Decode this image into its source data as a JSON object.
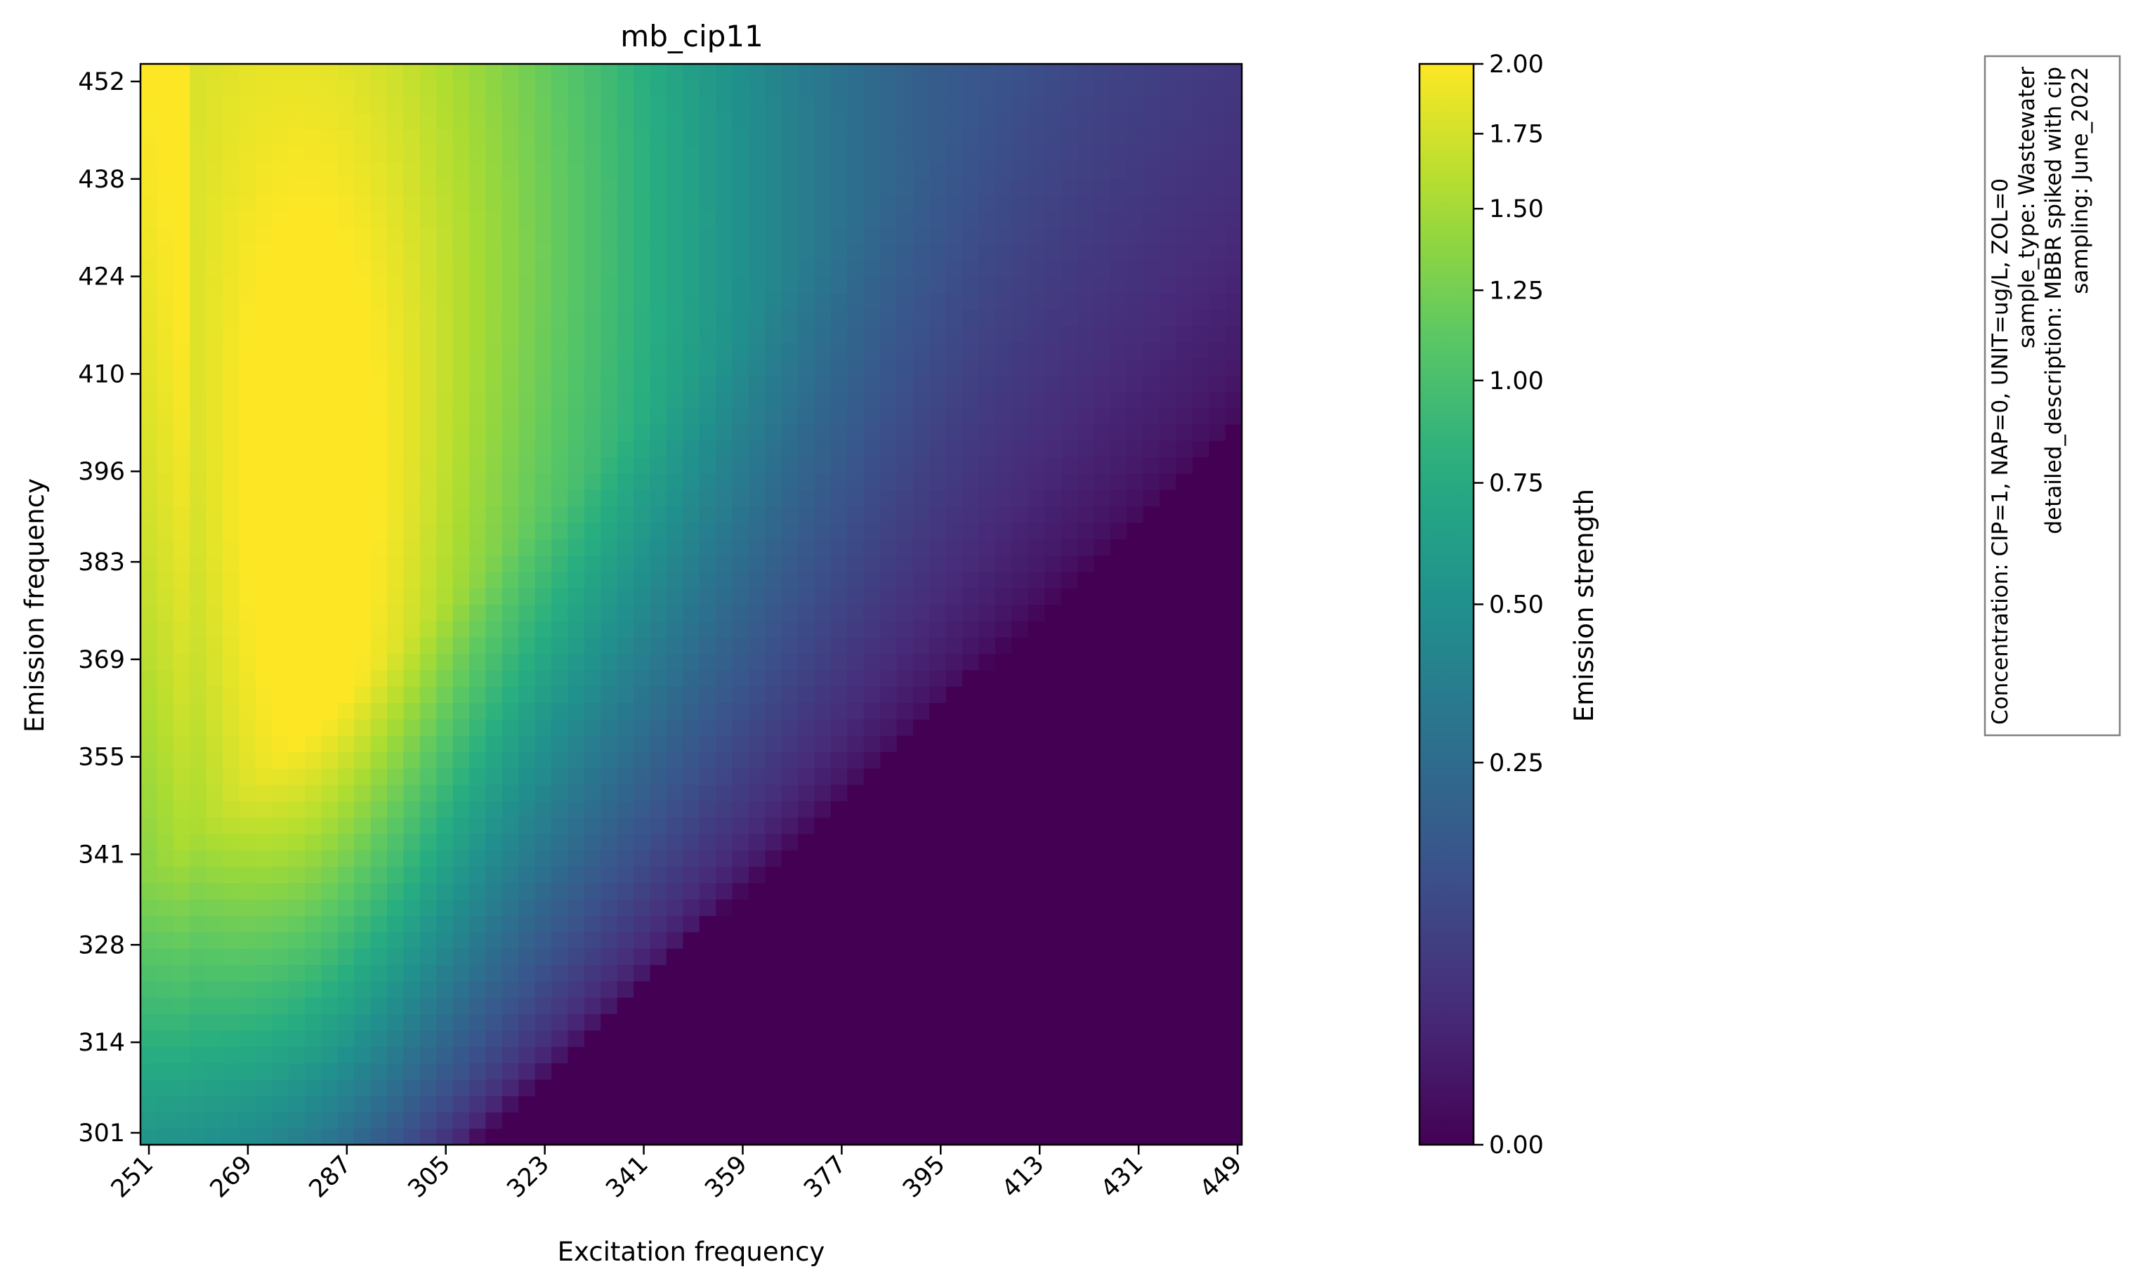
{
  "chart_data": {
    "type": "heatmap",
    "title": "mb_cip11",
    "xlabel": "Excitation frequency",
    "ylabel": "Emission frequency",
    "x_ticks": [
      "251",
      "269",
      "287",
      "305",
      "323",
      "341",
      "359",
      "377",
      "395",
      "413",
      "431",
      "449"
    ],
    "y_ticks": [
      "301",
      "314",
      "328",
      "341",
      "355",
      "369",
      "383",
      "396",
      "410",
      "424",
      "438",
      "452"
    ],
    "xlim": [
      251,
      449
    ],
    "ylim": [
      301,
      452
    ],
    "colorbar": {
      "label": "Emission strength",
      "ticks": [
        "0.00",
        "0.25",
        "0.50",
        "0.75",
        "1.00",
        "1.25",
        "1.50",
        "1.75",
        "2.00"
      ],
      "range": [
        0,
        2
      ],
      "scale": "power-0.5",
      "colormap": "viridis"
    },
    "annotation_lines": [
      "Concentration: CIP=1, NAP=0, UNIT=ug/L, ZOL=0",
      "sample_type: Wastewater",
      "detailed_description: MBBR spiked with cip",
      "sampling: June_2022"
    ],
    "grid": false,
    "legend": "none"
  },
  "colors": {
    "viridis_low": "#440154",
    "viridis_mid": "#21918c",
    "viridis_high": "#fde725",
    "frame": "#000000",
    "note_border": "#808080"
  }
}
